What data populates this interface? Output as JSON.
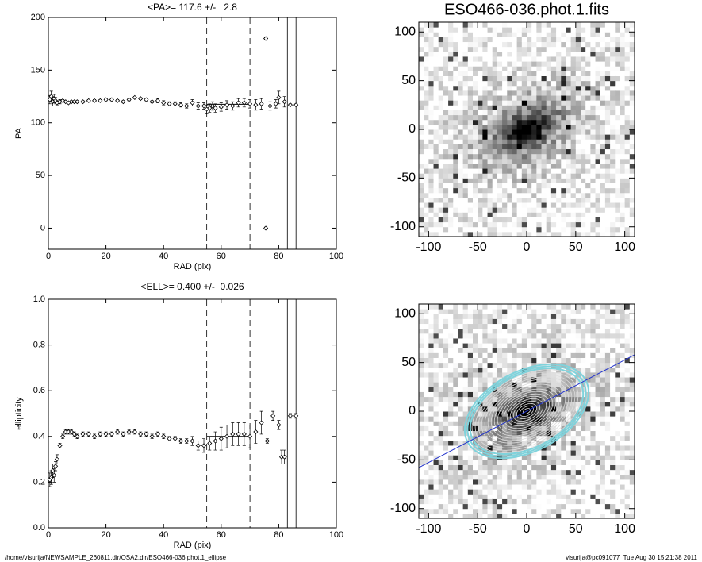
{
  "chart_data": [
    {
      "type": "scatter",
      "title": "<PA>= 117.6 +/-   2.8",
      "mean": 117.6,
      "xlabel": "RAD (pix)",
      "ylabel": "PA",
      "x": [
        0.5,
        1,
        1.5,
        2,
        2.5,
        3,
        4,
        5,
        6,
        7,
        8,
        9,
        10,
        12,
        14,
        16,
        18,
        20,
        22,
        24,
        26,
        28,
        30,
        32,
        34,
        36,
        38,
        40,
        42,
        44,
        46,
        48,
        50,
        52,
        54,
        55,
        56,
        57,
        58,
        60,
        62,
        64,
        66,
        68,
        70,
        72,
        74,
        75.5,
        75.5,
        77,
        79,
        80,
        82,
        84,
        86
      ],
      "values": [
        122,
        125,
        120,
        123,
        121,
        119,
        120,
        121,
        120,
        119,
        120,
        120,
        120,
        120,
        121,
        121,
        121,
        122,
        122,
        121,
        120,
        122,
        124,
        123,
        122,
        120,
        121,
        119,
        118,
        118,
        117,
        116,
        119,
        116,
        116,
        113,
        114,
        116,
        114,
        115,
        117,
        116,
        119,
        119,
        118,
        117,
        118,
        180,
        0,
        116,
        118,
        124,
        120,
        117,
        117
      ],
      "errors": [
        4,
        5,
        4,
        4,
        3,
        2,
        2,
        1,
        1,
        1,
        1,
        1,
        1,
        1,
        1,
        1,
        1,
        1,
        1,
        1,
        1,
        1,
        1,
        1,
        1,
        1,
        2,
        2,
        2,
        2,
        2,
        2,
        3,
        3,
        3,
        4,
        4,
        4,
        4,
        4,
        4,
        4,
        4,
        4,
        4,
        5,
        5,
        1,
        1,
        4,
        4,
        6,
        5,
        1,
        1
      ],
      "xlim": [
        0,
        100
      ],
      "ylim": [
        -20,
        200
      ],
      "xticks": [
        0,
        20,
        40,
        60,
        80,
        100
      ],
      "yticks": [
        0,
        50,
        100,
        150,
        200
      ],
      "dashed_lines": [
        55,
        70
      ],
      "solid_lines": [
        83,
        86
      ]
    },
    {
      "type": "scatter",
      "title": "<ELL>= 0.400 +/-  0.026",
      "mean": 0.4,
      "xlabel": "RAD (pix)",
      "ylabel": "ellipticity",
      "x": [
        0.5,
        1,
        1.5,
        2,
        2.5,
        3,
        4,
        5,
        6,
        7,
        8,
        9,
        10,
        12,
        14,
        16,
        18,
        20,
        22,
        24,
        26,
        28,
        30,
        32,
        34,
        36,
        38,
        40,
        42,
        44,
        46,
        48,
        50,
        52,
        54,
        56,
        58,
        60,
        62,
        64,
        66,
        68,
        70,
        72,
        74,
        76,
        78,
        80,
        81,
        82,
        84,
        86
      ],
      "values": [
        0.21,
        0.22,
        0.25,
        0.23,
        0.27,
        0.3,
        0.36,
        0.4,
        0.42,
        0.42,
        0.42,
        0.41,
        0.4,
        0.41,
        0.41,
        0.4,
        0.41,
        0.41,
        0.41,
        0.42,
        0.41,
        0.42,
        0.42,
        0.41,
        0.41,
        0.4,
        0.41,
        0.4,
        0.39,
        0.39,
        0.38,
        0.38,
        0.38,
        0.36,
        0.36,
        0.37,
        0.38,
        0.39,
        0.4,
        0.41,
        0.41,
        0.41,
        0.4,
        0.42,
        0.46,
        0.38,
        0.49,
        0.45,
        0.31,
        0.31,
        0.49,
        0.49
      ],
      "errors": [
        0.03,
        0.03,
        0.03,
        0.03,
        0.02,
        0.02,
        0.01,
        0.01,
        0.01,
        0.01,
        0.01,
        0.01,
        0.01,
        0.01,
        0.01,
        0.01,
        0.01,
        0.01,
        0.01,
        0.01,
        0.01,
        0.01,
        0.01,
        0.01,
        0.01,
        0.01,
        0.01,
        0.01,
        0.01,
        0.01,
        0.01,
        0.01,
        0.02,
        0.02,
        0.03,
        0.03,
        0.04,
        0.05,
        0.05,
        0.05,
        0.05,
        0.05,
        0.05,
        0.05,
        0.05,
        0.01,
        0.02,
        0.02,
        0.03,
        0.03,
        0.01,
        0.01
      ],
      "xlim": [
        0,
        100
      ],
      "ylim": [
        0,
        1
      ],
      "xticks": [
        0,
        20,
        40,
        60,
        80,
        100
      ],
      "yticks": [
        {
          "value": 0,
          "label": "0.0"
        },
        {
          "value": 0.2,
          "label": "0.2"
        },
        {
          "value": 0.4,
          "label": "0.4"
        },
        {
          "value": 0.6,
          "label": "0.6"
        },
        {
          "value": 0.8,
          "label": "0.8"
        },
        {
          "value": 1,
          "label": "1.0"
        }
      ],
      "dashed_lines": [
        55,
        70
      ],
      "solid_lines": [
        83,
        86
      ]
    },
    {
      "type": "image",
      "title": "ESO466-036.phot.1.fits",
      "xlim": [
        -110,
        110
      ],
      "ylim": [
        -110,
        110
      ],
      "xticks": [
        -100,
        -50,
        0,
        50,
        100
      ],
      "yticks": [
        -100,
        -50,
        0,
        50,
        100
      ],
      "contours": false
    },
    {
      "type": "image",
      "xlim": [
        -110,
        110
      ],
      "ylim": [
        -110,
        110
      ],
      "xticks": [
        -100,
        -50,
        0,
        50,
        100
      ],
      "yticks": [
        -100,
        -50,
        0,
        50,
        100
      ],
      "contours": true
    }
  ],
  "footer": {
    "left": "/home/visurija/NEWSAMPLE_260811.dir/OSA2.dir/ESO466-036.phot.1_ellipse",
    "right": "visurija@pc091077  Tue Aug 30 15:21:38 2011"
  }
}
